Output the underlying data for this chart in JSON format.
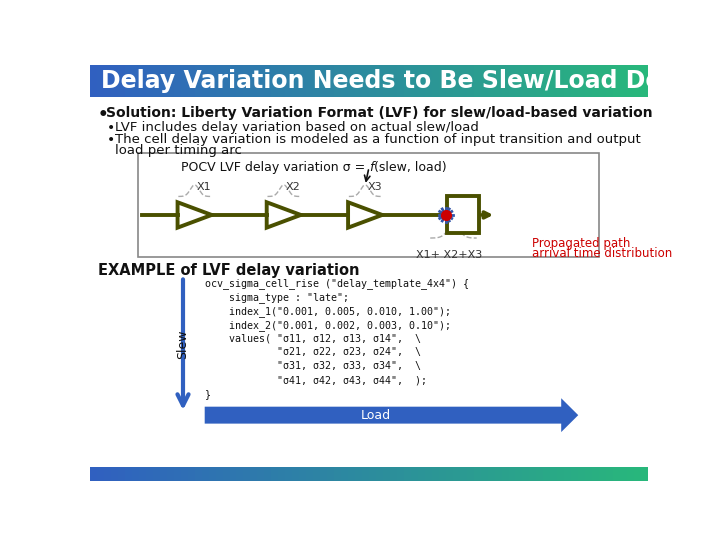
{
  "title": "Delay Variation Needs to Be Slew/Load Dependent",
  "title_bg_left": "#3060c0",
  "title_bg_right": "#28b87a",
  "title_color": "#ffffff",
  "body_bg": "#ffffff",
  "bullet1": "Solution: Liberty Variation Format (LVF) for slew/load-based variation",
  "bullet2": "LVF includes delay variation based on actual slew/load",
  "bullet3a": "The cell delay variation is modeled as a function of input transition and output",
  "bullet3b": "load per timing arc",
  "box_title_pre": "POCV LVF delay variation σ = ",
  "box_title_italic": "f",
  "box_title_post": "(slew, load)",
  "gate_color": "#4a5000",
  "prop_label_line1": "Propagated path",
  "prop_label_line2": "arrival time distribution",
  "prop_color": "#cc0000",
  "example_title": "EXAMPLE of LVF delay variation",
  "code_line0": "ocv_sigma_cell_rise (\"delay_template_4x4\") {",
  "code_line1": "    sigma_type : \"late\";",
  "code_line2": "    index_1(\"0.001, 0.005, 0.010, 1.00\");",
  "code_line3": "    index_2(\"0.001, 0.002, 0.003, 0.10\");",
  "code_line4": "    values( \"σ11, σ12, σ13, σ14\",  \\",
  "code_line5": "            \"σ21, σ22, σ23, σ24\",  \\",
  "code_line6": "            \"σ31, σ32, σ33, σ34\",  \\",
  "code_line7": "            \"σ41, σ42, σ43, σ44\",  );",
  "code_line8": "}",
  "slew_label": "Slew",
  "load_label": "Load",
  "arrow_color": "#3060c0",
  "footer_left": "#3060c0",
  "footer_right": "#28b87a"
}
